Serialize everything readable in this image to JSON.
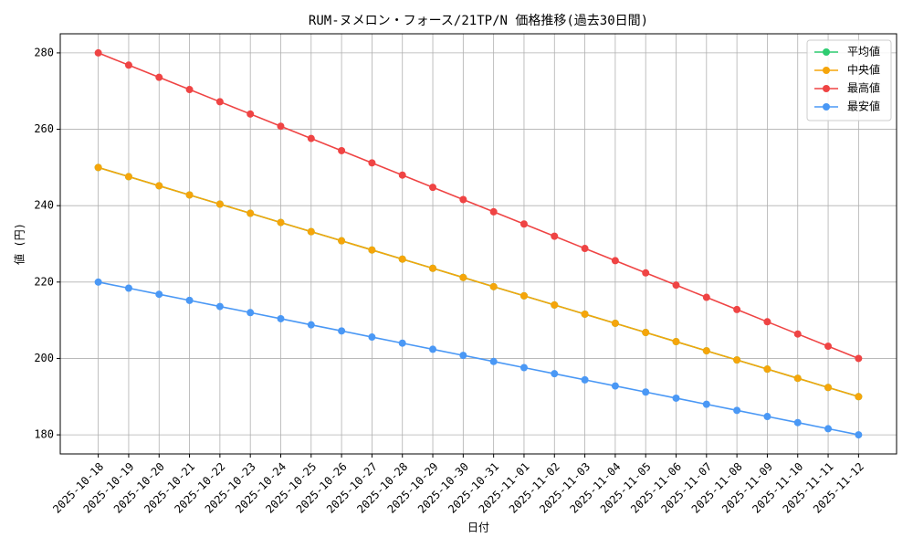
{
  "chart_data": {
    "type": "line",
    "title": "RUM-ヌメロン・フォース/21TP/N 価格推移(過去30日間)",
    "x_label": "日付",
    "y_label": "値 (円)",
    "categories": [
      "2025-10-18",
      "2025-10-19",
      "2025-10-20",
      "2025-10-21",
      "2025-10-22",
      "2025-10-23",
      "2025-10-24",
      "2025-10-25",
      "2025-10-26",
      "2025-10-27",
      "2025-10-28",
      "2025-10-29",
      "2025-10-30",
      "2025-10-31",
      "2025-11-01",
      "2025-11-02",
      "2025-11-03",
      "2025-11-04",
      "2025-11-05",
      "2025-11-06",
      "2025-11-07",
      "2025-11-08",
      "2025-11-09",
      "2025-11-10",
      "2025-11-11",
      "2025-11-12"
    ],
    "series": [
      {
        "name": "平均値",
        "color": "#2ecc71",
        "values": [
          250,
          247.6,
          245.2,
          242.8,
          240.4,
          238,
          235.6,
          233.2,
          230.8,
          228.4,
          226,
          223.6,
          221.2,
          218.8,
          216.4,
          214,
          211.6,
          209.2,
          206.8,
          204.4,
          202,
          199.6,
          197.2,
          194.8,
          192.4,
          190
        ]
      },
      {
        "name": "中央値",
        "color": "#f5a50b",
        "values": [
          250,
          247.6,
          245.2,
          242.8,
          240.4,
          238,
          235.6,
          233.2,
          230.8,
          228.4,
          226,
          223.6,
          221.2,
          218.8,
          216.4,
          214,
          211.6,
          209.2,
          206.8,
          204.4,
          202,
          199.6,
          197.2,
          194.8,
          192.4,
          190
        ]
      },
      {
        "name": "最高値",
        "color": "#ef4444",
        "values": [
          280,
          276.8,
          273.6,
          270.4,
          267.2,
          264,
          260.8,
          257.6,
          254.4,
          251.2,
          248,
          244.8,
          241.6,
          238.4,
          235.2,
          232,
          228.8,
          225.6,
          222.4,
          219.2,
          216,
          212.8,
          209.6,
          206.4,
          203.2,
          200
        ]
      },
      {
        "name": "最安値",
        "color": "#4a98f5",
        "values": [
          220,
          218.4,
          216.8,
          215.2,
          213.6,
          212,
          210.4,
          208.8,
          207.2,
          205.6,
          204,
          202.4,
          200.8,
          199.2,
          197.6,
          196,
          194.4,
          192.8,
          191.2,
          189.6,
          188,
          186.4,
          184.8,
          183.2,
          181.6,
          180
        ]
      }
    ],
    "ylim": [
      175,
      285
    ],
    "yticks": [
      180,
      200,
      220,
      240,
      260,
      280
    ],
    "grid": true,
    "legend": "upper right"
  }
}
